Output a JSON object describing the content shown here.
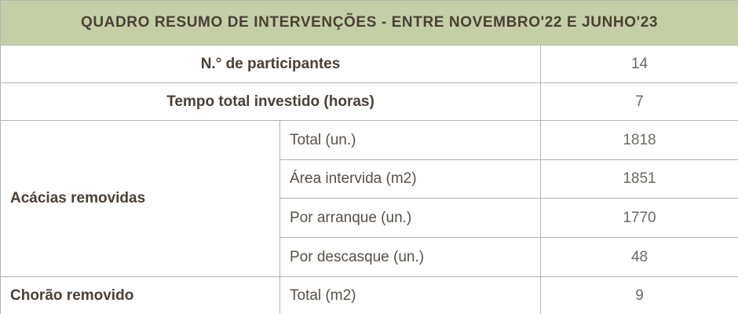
{
  "colors": {
    "header_background": "#c4cfa6",
    "header_text": "#4a4036",
    "bold_label_text": "#4a4036",
    "sub_label_text": "#575047",
    "value_text": "#6e6a63",
    "border": "#b4b4b4",
    "cell_background": "#ffffff"
  },
  "table": {
    "title": "QUADRO RESUMO DE INTERVENÇÕES - ENTRE NOVEMBRO'22 E JUNHO'23",
    "summary_rows": [
      {
        "label": "N.° de participantes",
        "value": "14"
      },
      {
        "label": "Tempo total investido (horas)",
        "value": "7"
      }
    ],
    "groups": [
      {
        "label": "Acácias removidas",
        "rows": [
          {
            "label": "Total (un.)",
            "value": "1818"
          },
          {
            "label": "Área intervida (m2)",
            "value": "1851"
          },
          {
            "label": "Por arranque (un.)",
            "value": "1770"
          },
          {
            "label": "Por descasque (un.)",
            "value": "48"
          }
        ]
      },
      {
        "label": "Chorão removido",
        "rows": [
          {
            "label": "Total (m2)",
            "value": "9"
          }
        ]
      }
    ]
  }
}
